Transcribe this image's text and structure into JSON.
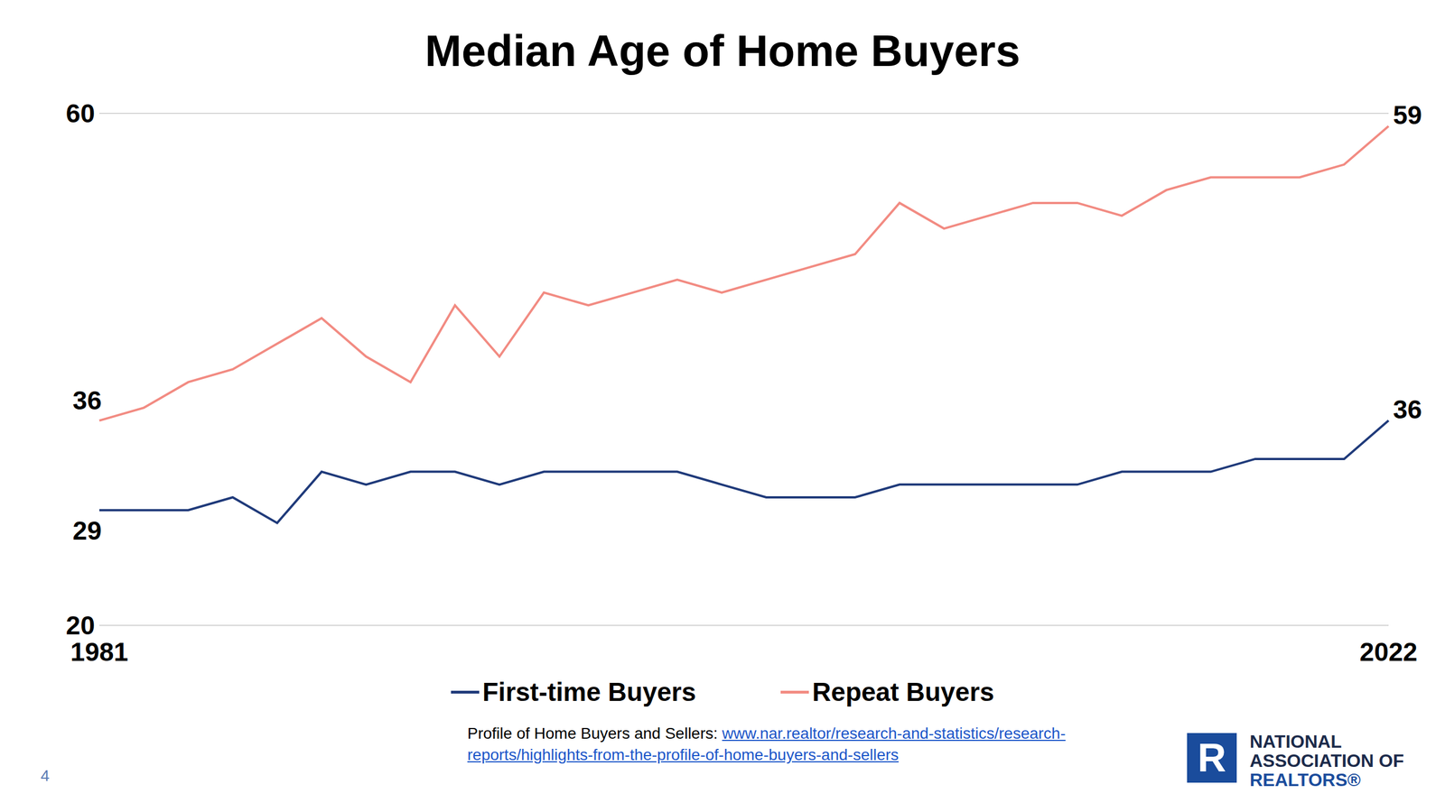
{
  "chart_data": {
    "type": "line",
    "title": "Median Age of Home Buyers",
    "categories": [
      "1981",
      null,
      null,
      null,
      null,
      null,
      null,
      null,
      null,
      null,
      null,
      null,
      null,
      null,
      null,
      null,
      null,
      null,
      null,
      null,
      null,
      null,
      null,
      null,
      null,
      null,
      null,
      null,
      null,
      "2022"
    ],
    "series": [
      {
        "name": "First-time Buyers",
        "color": "#1f3a7a",
        "values": [
          29,
          29,
          29,
          30,
          28,
          32,
          31,
          32,
          32,
          31,
          32,
          32,
          32,
          32,
          31,
          30,
          30,
          30,
          31,
          31,
          31,
          31,
          31,
          32,
          32,
          32,
          33,
          33,
          33,
          36
        ],
        "value_labels": [
          "29",
          null,
          null,
          null,
          null,
          null,
          null,
          null,
          null,
          null,
          null,
          null,
          null,
          null,
          null,
          null,
          null,
          null,
          null,
          null,
          null,
          null,
          null,
          null,
          null,
          null,
          null,
          null,
          null,
          "36"
        ]
      },
      {
        "name": "Repeat Buyers",
        "color": "#f28b82",
        "values": [
          36,
          37,
          39,
          40,
          42,
          44,
          41,
          39,
          45,
          41,
          46,
          45,
          46,
          47,
          46,
          47,
          48,
          49,
          53,
          51,
          52,
          53,
          53,
          52,
          54,
          55,
          55,
          55,
          56,
          59
        ],
        "value_labels": [
          "36",
          null,
          null,
          null,
          null,
          null,
          null,
          null,
          null,
          null,
          null,
          null,
          null,
          null,
          null,
          null,
          null,
          null,
          null,
          null,
          null,
          null,
          null,
          null,
          null,
          null,
          null,
          null,
          null,
          "59"
        ]
      }
    ],
    "ylim": [
      20,
      60
    ],
    "yticks": [
      20,
      60
    ],
    "grid": true,
    "legend": "bottom"
  },
  "source": {
    "label": "Profile of Home Buyers and Sellers:",
    "url": "www.nar.realtor/research-and-statistics/research-reports/highlights-from-the-profile-of-home-buyers-and-sellers"
  },
  "logo": {
    "mark": "R",
    "lines": [
      "NATIONAL",
      "ASSOCIATION OF",
      "REALTORS®"
    ]
  },
  "page_number": 4
}
